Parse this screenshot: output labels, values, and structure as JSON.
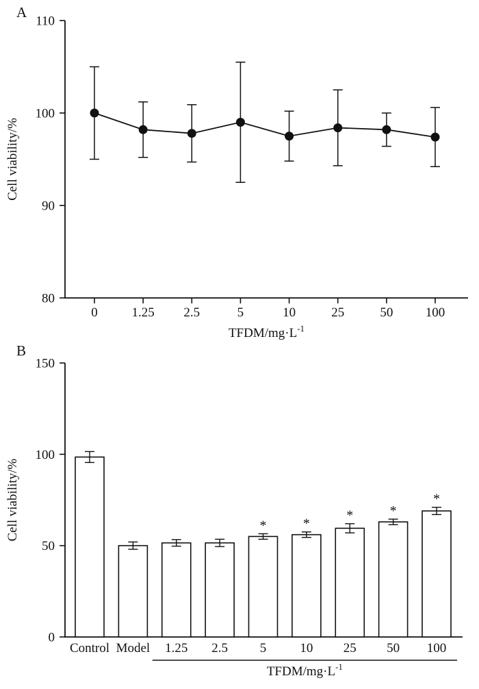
{
  "style": {
    "ink_color": "#111111",
    "background": "#ffffff"
  },
  "panel_a": {
    "label": "A"
  },
  "panel_b": {
    "label": "B"
  },
  "chart_data": [
    {
      "id": "chart-a",
      "panel": "A",
      "type": "line",
      "title": "",
      "ylabel": "Cell viability/%",
      "xlabel": "TFDM/mg·L⁻¹",
      "xlabel_parts": {
        "base": "TFDM/mg·L",
        "sup": "-1"
      },
      "categories": [
        "0",
        "1.25",
        "2.5",
        "5",
        "10",
        "25",
        "50",
        "100"
      ],
      "values": [
        100,
        98.2,
        97.8,
        99,
        97.5,
        98.4,
        98.2,
        97.4
      ],
      "errors": [
        5,
        3,
        3.1,
        6.5,
        2.7,
        4.1,
        1.8,
        3.2
      ],
      "ylim": [
        80,
        110
      ],
      "yticks": [
        80,
        90,
        100,
        110
      ],
      "marker": "filled-circle",
      "grid": false,
      "legend": "none"
    },
    {
      "id": "chart-b",
      "panel": "B",
      "type": "bar",
      "title": "",
      "ylabel": "Cell viability/%",
      "xlabel": "TFDM/mg·L⁻¹",
      "xlabel_parts": {
        "base": "TFDM/mg·L",
        "sup": "-1"
      },
      "categories": [
        "Control",
        "Model",
        "1.25",
        "2.5",
        "5",
        "10",
        "25",
        "50",
        "100"
      ],
      "values": [
        98.5,
        50,
        51.5,
        51.5,
        55,
        56,
        59.5,
        63,
        69
      ],
      "errors": [
        3,
        2,
        1.8,
        2,
        1.5,
        1.5,
        2.5,
        1.5,
        2
      ],
      "significance": [
        "",
        "",
        "",
        "",
        "*",
        "*",
        "*",
        "*",
        "*"
      ],
      "group_label_span": [
        "1.25",
        "100"
      ],
      "ylim": [
        0,
        150
      ],
      "yticks": [
        0,
        50,
        100,
        150
      ],
      "bar_fill": "#ffffff",
      "grid": false,
      "legend": "none"
    }
  ]
}
